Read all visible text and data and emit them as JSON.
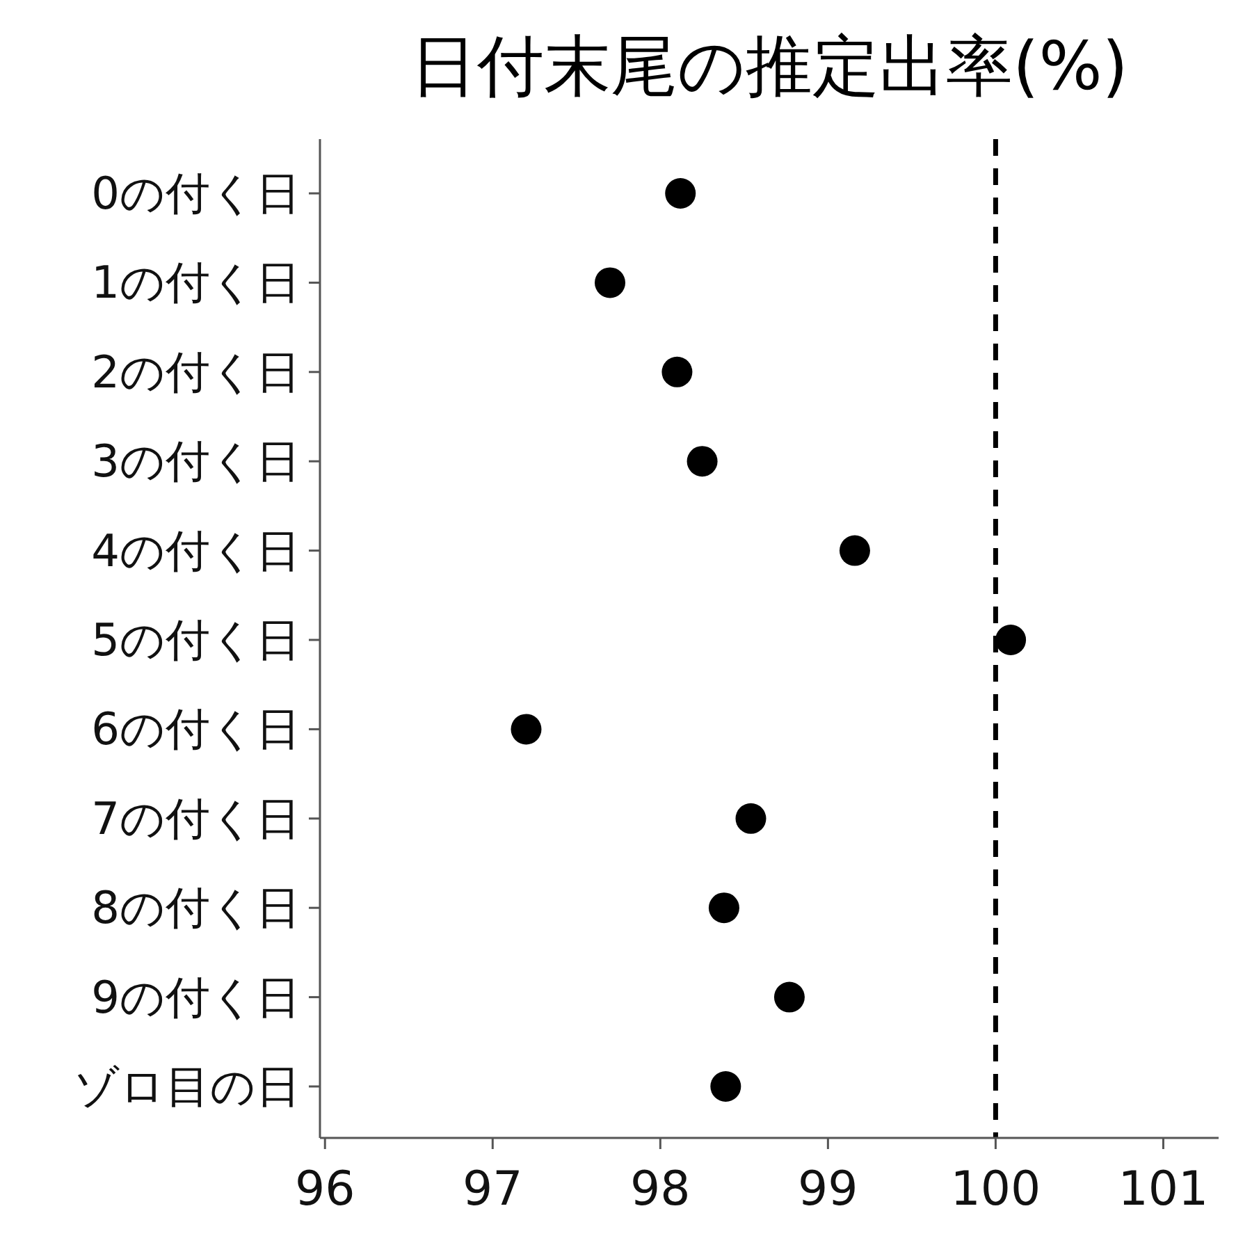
{
  "chart_data": {
    "type": "scatter",
    "orientation": "horizontal",
    "title": "日付末尾の推定出率(%)",
    "categories": [
      "0の付く日",
      "1の付く日",
      "2の付く日",
      "3の付く日",
      "4の付く日",
      "5の付く日",
      "6の付く日",
      "7の付く日",
      "8の付く日",
      "9の付く日",
      "ゾロ目の日"
    ],
    "values": [
      98.12,
      97.7,
      98.1,
      98.25,
      99.16,
      100.09,
      97.2,
      98.54,
      98.38,
      98.77,
      98.39
    ],
    "color": "#000000",
    "marker": "circle",
    "xlim": [
      95.97,
      101.33
    ],
    "xticks": [
      96,
      97,
      98,
      99,
      100,
      101
    ],
    "ref_lines": [
      {
        "axis": "x",
        "value": 100,
        "line_style": "dashed",
        "color": "#000000"
      }
    ],
    "grid": false
  }
}
